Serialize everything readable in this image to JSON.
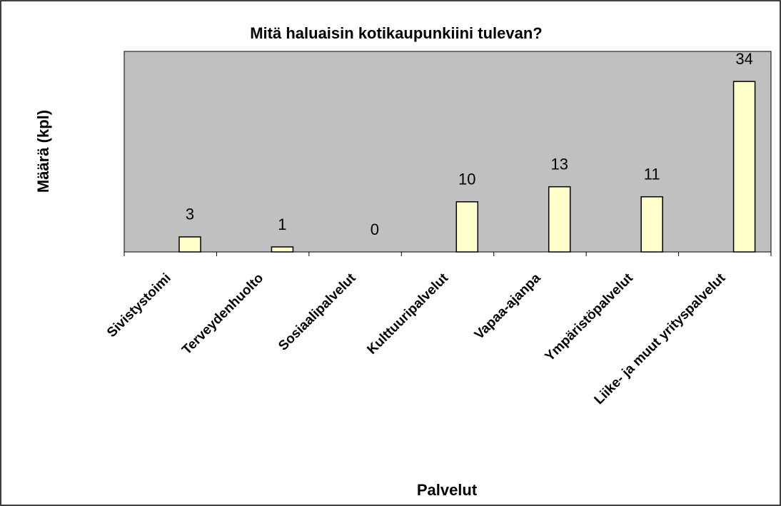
{
  "chart_data": {
    "type": "bar",
    "title": "Mitä haluaisin kotikaupunkiini tulevan?",
    "x_label": "Palvelut",
    "y_label": "Määrä (kpl)",
    "categories": [
      "Sivistystoimi",
      "Terveydenhuolto",
      "Sosiaalipalvelut",
      "Kulttuuripalvelut",
      "Vapaa-ajanpa",
      "Ympäristöpalvelut",
      "Liike- ja muut yrityspalvelut"
    ],
    "values": [
      3,
      1,
      0,
      10,
      13,
      11,
      34
    ],
    "color": "#ffffcc",
    "plot_background": "#c0c0c0",
    "ylim": [
      0,
      40
    ],
    "grid": false
  }
}
